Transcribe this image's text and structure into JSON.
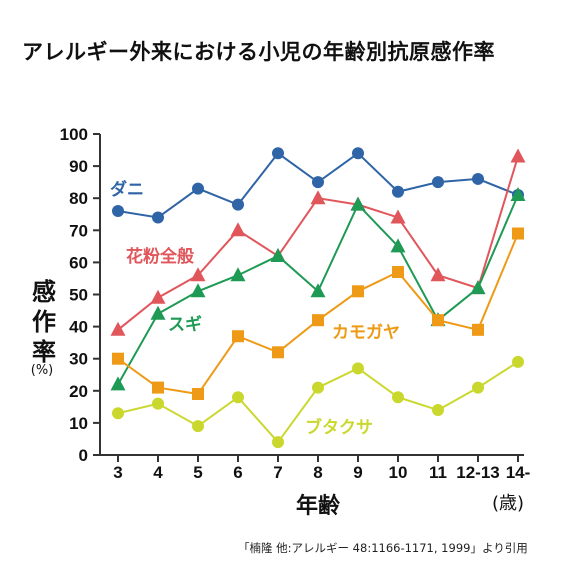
{
  "title": "アレルギー外来における小児の年齢別抗原感作率",
  "source_note": "「楠隆 他:アレルギー 48:1166-1171, 1999」より引用",
  "chart_data": {
    "type": "line",
    "title": "アレルギー外来における小児の年齢別抗原感作率",
    "xlabel": "年齢",
    "xunit": "(歳)",
    "ylabel": "感作率",
    "yunit": "(%)",
    "ylim": [
      0,
      100
    ],
    "yticks": [
      0,
      10,
      20,
      30,
      40,
      50,
      60,
      70,
      80,
      90,
      100
    ],
    "grid": false,
    "legend": "inline labels",
    "categories": [
      "3",
      "4",
      "5",
      "6",
      "7",
      "8",
      "9",
      "10",
      "11",
      "12-13",
      "14-"
    ],
    "series": [
      {
        "name": "ダニ",
        "color": "#2f64a6",
        "marker": "circle",
        "values": [
          76,
          74,
          83,
          78,
          94,
          85,
          94,
          82,
          85,
          86,
          81
        ]
      },
      {
        "name": "花粉全般",
        "color": "#e0565b",
        "marker": "triangle",
        "values": [
          39,
          49,
          56,
          70,
          62,
          80,
          78,
          74,
          56,
          52,
          93
        ]
      },
      {
        "name": "スギ",
        "color": "#1e9a55",
        "marker": "triangle",
        "values": [
          22,
          44,
          51,
          56,
          62,
          51,
          78,
          65,
          42,
          52,
          81
        ]
      },
      {
        "name": "カモガヤ",
        "color": "#ee9a16",
        "marker": "square",
        "values": [
          30,
          21,
          19,
          37,
          32,
          42,
          51,
          57,
          42,
          39,
          69
        ]
      },
      {
        "name": "ブタクサ",
        "color": "#cad82e",
        "marker": "circle",
        "values": [
          13,
          16,
          9,
          18,
          4,
          21,
          27,
          18,
          14,
          21,
          29
        ]
      }
    ]
  }
}
